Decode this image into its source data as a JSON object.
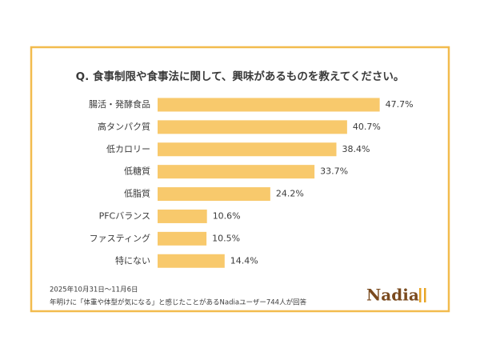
{
  "chart_data": {
    "type": "hbar",
    "title": "Q. 食事制限や食事法に関して、興味があるものを教えてください。",
    "categories": [
      "腸活・発酵食品",
      "高タンパク質",
      "低カロリー",
      "低糖質",
      "低脂質",
      "PFCバランス",
      "ファスティング",
      "特にない"
    ],
    "values": [
      47.7,
      40.7,
      38.4,
      33.7,
      24.2,
      10.6,
      10.5,
      14.4
    ],
    "value_labels": [
      "47.7%",
      "40.7%",
      "38.4%",
      "33.7%",
      "24.2%",
      "10.6%",
      "10.5%",
      "14.4%"
    ],
    "color": "#f8c96c",
    "xlim": [
      0,
      50
    ],
    "notes": [
      "2025年10月31日～11月6日",
      "年明けに「体重や体型が気になる」と感じたことがあるNadiaユーザー744人が回答"
    ],
    "logo": "Nadia"
  }
}
